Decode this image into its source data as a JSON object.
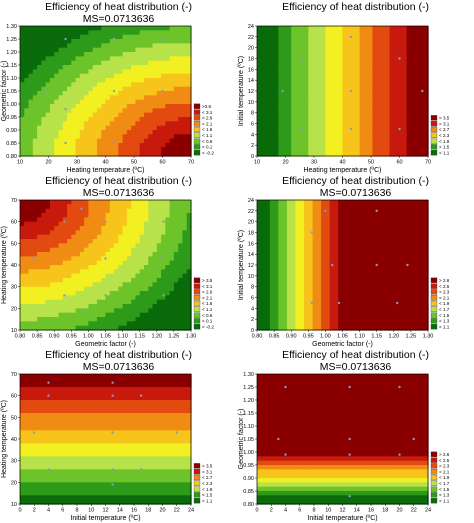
{
  "colors": {
    "scale": [
      "#0a6b0a",
      "#2e9a1a",
      "#6cc42a",
      "#b8e24a",
      "#f2f020",
      "#f6c41a",
      "#f08c14",
      "#e24a10",
      "#c81a0c",
      "#8a0000"
    ],
    "point": "#8a9abf"
  },
  "chart_data": [
    {
      "type": "heatmap",
      "title": "Efficiency of heat distribution (-)",
      "subtitle": "MS=0.0713636",
      "xlabel": "Heating temperature (ºC)",
      "ylabel": "Geometric factor (-)",
      "xlim": [
        10,
        70
      ],
      "ylim": [
        0.8,
        1.3
      ],
      "xticks": [
        "10",
        "20",
        "30",
        "40",
        "50",
        "60",
        "70"
      ],
      "yticks": [
        "0.80",
        "0.85",
        "0.90",
        "0.95",
        "1.00",
        "1.05",
        "1.10",
        "1.15",
        "1.20",
        "1.25",
        "1.30"
      ],
      "legend": [
        ">3.6",
        "< 3.1",
        "< 2.6",
        "< 2.1",
        "< 1.6",
        "< 1.1",
        "< 0.6",
        "< 0.1",
        "< -0.2"
      ],
      "legend_position": "right",
      "pattern": "bowl-xy",
      "points": [
        [
          26,
          1.25
        ],
        [
          43,
          1.25
        ],
        [
          60,
          1.25
        ],
        [
          19,
          1.05
        ],
        [
          43,
          1.05
        ],
        [
          60,
          1.05
        ],
        [
          26,
          0.98
        ],
        [
          43,
          0.85
        ],
        [
          26,
          0.85
        ]
      ]
    },
    {
      "type": "heatmap",
      "title": "Efficiency of heat distribution (-)",
      "subtitle": "",
      "xlabel": "Heating temperature (ºC)",
      "ylabel": "Initial temperature (ºC)",
      "xlim": [
        10,
        70
      ],
      "ylim": [
        0,
        24
      ],
      "xticks": [
        "10",
        "20",
        "30",
        "40",
        "50",
        "60",
        "70"
      ],
      "yticks": [
        "0",
        "2",
        "4",
        "6",
        "8",
        "10",
        "12",
        "14",
        "16",
        "18",
        "20",
        "22",
        "24"
      ],
      "legend": [
        "> 3.5",
        "< 3.1",
        "< 2.7",
        "< 2.3",
        "< 1.9",
        "< 1.5",
        "< 1.1"
      ],
      "legend_position": "right",
      "pattern": "stripe-x",
      "points": [
        [
          26,
          18
        ],
        [
          43,
          22
        ],
        [
          60,
          18
        ],
        [
          19,
          12
        ],
        [
          43,
          12
        ],
        [
          68,
          12
        ],
        [
          26,
          5
        ],
        [
          43,
          5
        ],
        [
          60,
          5
        ]
      ]
    },
    {
      "type": "heatmap",
      "title": "Efficiency of heat distribution (-)",
      "subtitle": "MS=0.0713636",
      "xlabel": "Geometric factor (-)",
      "ylabel": "Heating temperature (ºC)",
      "xlim": [
        0.8,
        1.3
      ],
      "ylim": [
        10,
        70
      ],
      "xticks": [
        "0.80",
        "0.85",
        "0.90",
        "0.95",
        "1.00",
        "1.05",
        "1.10",
        "1.15",
        "1.20",
        "1.25",
        "1.30"
      ],
      "yticks": [
        "10",
        "20",
        "30",
        "40",
        "50",
        "60",
        "70"
      ],
      "legend": [
        "> 3.5",
        "< 3.1",
        "< 2.6",
        "< 2.1",
        "< 1.6",
        "< 1.1",
        "< 0.6",
        "< 0.1",
        "< -0.2"
      ],
      "legend_position": "right",
      "pattern": "bowl-yx",
      "points": [
        [
          0.98,
          66
        ],
        [
          0.93,
          60
        ],
        [
          1.05,
          60
        ],
        [
          1.22,
          60
        ],
        [
          0.84,
          43
        ],
        [
          1.05,
          43
        ],
        [
          1.21,
          43
        ],
        [
          0.93,
          26
        ],
        [
          1.05,
          26
        ],
        [
          1.22,
          26
        ],
        [
          0.99,
          19
        ]
      ]
    },
    {
      "type": "heatmap",
      "title": "Efficiency of heat distribution (-)",
      "subtitle": "MS=0.0713636",
      "xlabel": "Geometric factor (-)",
      "ylabel": "Initial temperature (ºC)",
      "xlim": [
        0.8,
        1.3
      ],
      "ylim": [
        0,
        24
      ],
      "xticks": [
        "0.80",
        "0.85",
        "0.90",
        "0.95",
        "1.00",
        "1.05",
        "1.10",
        "1.15",
        "1.20",
        "1.25",
        "1.30"
      ],
      "yticks": [
        "0",
        "2",
        "4",
        "6",
        "8",
        "10",
        "12",
        "14",
        "16",
        "18",
        "20",
        "22",
        "24"
      ],
      "legend": [
        "> 2.6",
        "< 2.5",
        "< 2.3",
        "< 2.1",
        "< 1.9",
        "< 1.7",
        "< 1.5",
        "< 1.3",
        "< 1.1"
      ],
      "legend_position": "right",
      "pattern": "stripe-x2",
      "points": [
        [
          1.0,
          22
        ],
        [
          1.15,
          22
        ],
        [
          0.96,
          18
        ],
        [
          1.02,
          12
        ],
        [
          1.15,
          12
        ],
        [
          1.24,
          12
        ],
        [
          0.96,
          5
        ],
        [
          1.04,
          5
        ],
        [
          1.21,
          5
        ]
      ]
    },
    {
      "type": "heatmap",
      "title": "Efficiency of heat distribution (-)",
      "subtitle": "MS=0.0713636",
      "xlabel": "Initial temperature (ºC)",
      "ylabel": "Heating temperature (ºC)",
      "xlim": [
        0,
        24
      ],
      "ylim": [
        10,
        70
      ],
      "xticks": [
        "0",
        "2",
        "4",
        "6",
        "8",
        "10",
        "12",
        "14",
        "16",
        "18",
        "20",
        "22",
        "24"
      ],
      "yticks": [
        "10",
        "20",
        "30",
        "40",
        "50",
        "60",
        "70"
      ],
      "legend": [
        "> 3.5",
        "< 3.1",
        "< 2.7",
        "< 2.3",
        "< 1.9",
        "< 1.5",
        "< 1.1"
      ],
      "legend_position": "right",
      "pattern": "stripe-y",
      "points": [
        [
          4,
          66
        ],
        [
          13,
          66
        ],
        [
          4,
          60
        ],
        [
          13,
          60
        ],
        [
          17,
          60
        ],
        [
          2,
          43
        ],
        [
          13,
          43
        ],
        [
          22,
          43
        ],
        [
          4,
          26
        ],
        [
          13,
          26
        ],
        [
          17,
          26
        ],
        [
          13,
          19
        ]
      ]
    },
    {
      "type": "heatmap",
      "title": "Efficiency of heat distribution (-)",
      "subtitle": "MS=0.0713636",
      "xlabel": "Initial temperature (ºC)",
      "ylabel": "Geometric factor (-)",
      "xlim": [
        0,
        24
      ],
      "ylim": [
        0.8,
        1.3
      ],
      "xticks": [
        "0",
        "2",
        "4",
        "6",
        "8",
        "10",
        "12",
        "14",
        "16",
        "18",
        "20",
        "22",
        "24"
      ],
      "yticks": [
        "0.80",
        "0.85",
        "0.90",
        "0.95",
        "1.00",
        "1.05",
        "1.10",
        "1.15",
        "1.20",
        "1.25",
        "1.30"
      ],
      "legend": [
        "> 2.6",
        "< 2.5",
        "< 2.3",
        "< 2.1",
        "< 1.9",
        "< 1.7",
        "< 1.5",
        "< 1.3",
        "< 1.1"
      ],
      "legend_position": "right",
      "pattern": "stripe-y2",
      "points": [
        [
          4,
          1.25
        ],
        [
          13,
          1.25
        ],
        [
          20,
          1.25
        ],
        [
          3,
          1.05
        ],
        [
          13,
          1.05
        ],
        [
          22,
          1.05
        ],
        [
          4,
          0.99
        ],
        [
          13,
          0.99
        ],
        [
          20,
          0.99
        ],
        [
          13,
          0.83
        ]
      ]
    }
  ]
}
